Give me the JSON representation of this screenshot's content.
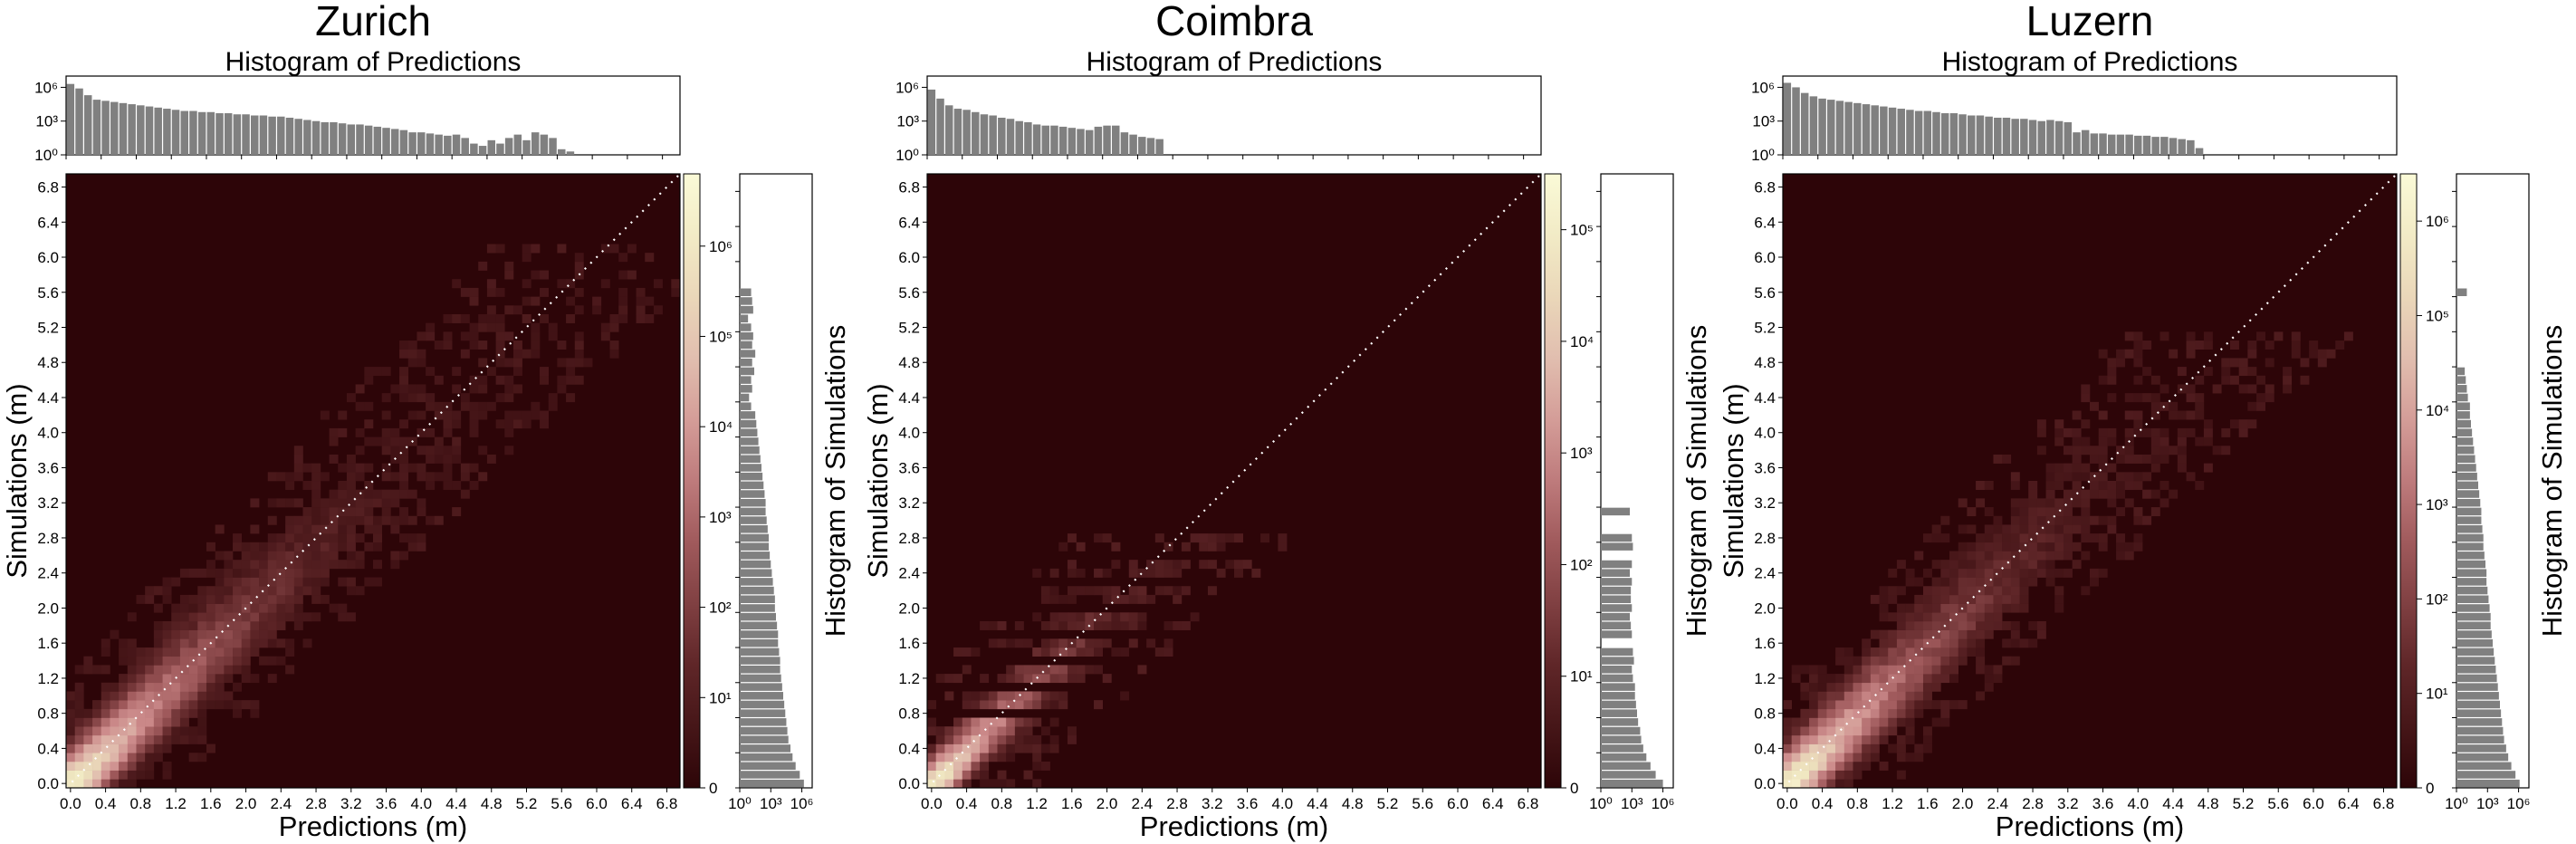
{
  "chart_data": [
    {
      "type": "heatmap",
      "title": "Zurich",
      "top_hist_title": "Histogram of Predictions",
      "side_hist_label": "Histogram of Simulations",
      "xlabel": "Predictions (m)",
      "ylabel": "Simulations (m)",
      "xlim": [
        0,
        7.0
      ],
      "ylim": [
        0,
        7.0
      ],
      "ticks": [
        "0.0",
        "0.4",
        "0.8",
        "1.2",
        "1.6",
        "2.0",
        "2.4",
        "2.8",
        "3.2",
        "3.6",
        "4.0",
        "4.4",
        "4.8",
        "5.2",
        "5.6",
        "6.0",
        "6.4",
        "6.8"
      ],
      "colorbar": {
        "scale": "log",
        "max_exp": 6.8,
        "tick_labels": [
          "0",
          "10¹",
          "10²",
          "10³",
          "10⁴",
          "10⁵",
          "10⁶"
        ],
        "tick_exps": [
          0,
          1,
          2,
          3,
          4,
          5,
          6
        ]
      },
      "top_hist": {
        "scale": "log",
        "tick_labels": [
          "10⁰",
          "10³",
          "10⁶"
        ],
        "max_exp": 7,
        "log10_counts": [
          6.3,
          5.9,
          5.3,
          4.9,
          4.8,
          4.7,
          4.6,
          4.5,
          4.4,
          4.3,
          4.2,
          4.1,
          4.0,
          3.9,
          3.9,
          3.8,
          3.8,
          3.7,
          3.7,
          3.6,
          3.6,
          3.5,
          3.5,
          3.4,
          3.4,
          3.3,
          3.2,
          3.1,
          3.0,
          2.9,
          2.9,
          2.8,
          2.7,
          2.7,
          2.6,
          2.5,
          2.4,
          2.3,
          2.2,
          2.0,
          2.0,
          1.9,
          1.8,
          1.7,
          1.8,
          1.5,
          1.0,
          0.8,
          1.3,
          1.0,
          1.5,
          1.8,
          1.3,
          2.0,
          1.8,
          1.5,
          0.5,
          0.3
        ]
      },
      "side_hist": {
        "scale": "log",
        "tick_labels": [
          "10⁰",
          "10³",
          "10⁶"
        ],
        "max_exp": 7,
        "log10_counts": [
          6.2,
          5.8,
          5.4,
          5.1,
          4.9,
          4.7,
          4.6,
          4.5,
          4.4,
          4.3,
          4.2,
          4.1,
          4.0,
          3.9,
          3.9,
          3.8,
          3.7,
          3.7,
          3.6,
          3.5,
          3.4,
          3.4,
          3.3,
          3.2,
          3.1,
          3.0,
          2.9,
          2.8,
          2.8,
          2.7,
          2.6,
          2.5,
          2.5,
          2.4,
          2.3,
          2.2,
          2.1,
          2.0,
          1.9,
          1.8,
          1.7,
          1.6,
          1.5,
          1.1,
          0.9,
          1.2,
          1.1,
          1.4,
          1.2,
          1.5,
          1.2,
          1.3,
          1.1,
          0.8,
          1.3,
          1.2,
          1.1
        ]
      },
      "bands": [
        {
          "y0": 0,
          "y1": 6.0,
          "peak_exp": 6.5
        }
      ]
    },
    {
      "type": "heatmap",
      "title": "Coimbra",
      "top_hist_title": "Histogram of Predictions",
      "side_hist_label": "Histogram of Simulations",
      "xlabel": "Predictions (m)",
      "ylabel": "Simulations (m)",
      "xlim": [
        0,
        7.0
      ],
      "ylim": [
        0,
        7.0
      ],
      "ticks": [
        "0.0",
        "0.4",
        "0.8",
        "1.2",
        "1.6",
        "2.0",
        "2.4",
        "2.8",
        "3.2",
        "3.6",
        "4.0",
        "4.4",
        "4.8",
        "5.2",
        "5.6",
        "6.0",
        "6.4",
        "6.8"
      ],
      "colorbar": {
        "scale": "log",
        "max_exp": 5.5,
        "tick_labels": [
          "0",
          "10¹",
          "10²",
          "10³",
          "10⁴",
          "10⁵"
        ],
        "tick_exps": [
          0,
          1,
          2,
          3,
          4,
          5
        ]
      },
      "top_hist": {
        "scale": "log",
        "tick_labels": [
          "10⁰",
          "10³",
          "10⁶"
        ],
        "max_exp": 7,
        "log10_counts": [
          5.8,
          5.0,
          4.4,
          4.1,
          4.0,
          3.8,
          3.6,
          3.5,
          3.3,
          3.2,
          3.0,
          2.9,
          2.7,
          2.6,
          2.6,
          2.5,
          2.4,
          2.3,
          2.2,
          2.5,
          2.6,
          2.6,
          2.0,
          1.8,
          1.6,
          1.5,
          1.4
        ]
      },
      "side_hist": {
        "scale": "log",
        "tick_labels": [
          "10⁰",
          "10³",
          "10⁶"
        ],
        "max_exp": 7,
        "log10_counts": [
          6.0,
          5.3,
          4.8,
          4.4,
          4.1,
          3.9,
          3.8,
          3.6,
          3.5,
          3.4,
          3.3,
          3.3,
          3.1,
          3.0,
          3.2,
          3.1,
          0,
          3.0,
          2.9,
          2.8,
          3.0,
          2.9,
          2.9,
          3.0,
          2.8,
          3.0,
          0,
          3.1,
          3.0,
          0,
          0,
          2.8
        ]
      },
      "bands": [
        {
          "y0": 0,
          "y1": 2.8,
          "peak_exp": 5.3,
          "fragmented": true
        }
      ]
    },
    {
      "type": "heatmap",
      "title": "Luzern",
      "top_hist_title": "Histogram of Predictions",
      "side_hist_label": "Histogram of Simulations",
      "xlabel": "Predictions (m)",
      "ylabel": "Simulations (m)",
      "xlim": [
        0,
        7.0
      ],
      "ylim": [
        0,
        7.0
      ],
      "ticks": [
        "0.0",
        "0.4",
        "0.8",
        "1.2",
        "1.6",
        "2.0",
        "2.4",
        "2.8",
        "3.2",
        "3.6",
        "4.0",
        "4.4",
        "4.8",
        "5.2",
        "5.6",
        "6.0",
        "6.4",
        "6.8"
      ],
      "colorbar": {
        "scale": "log",
        "max_exp": 6.5,
        "tick_labels": [
          "0",
          "10¹",
          "10²",
          "10³",
          "10⁴",
          "10⁵",
          "10⁶"
        ],
        "tick_exps": [
          0,
          1,
          2,
          3,
          4,
          5,
          6
        ]
      },
      "top_hist": {
        "scale": "log",
        "tick_labels": [
          "10⁰",
          "10³",
          "10⁶"
        ],
        "max_exp": 7,
        "log10_counts": [
          6.4,
          6.0,
          5.5,
          5.2,
          5.0,
          4.9,
          4.8,
          4.7,
          4.6,
          4.5,
          4.4,
          4.3,
          4.2,
          4.1,
          4.0,
          3.9,
          3.9,
          3.8,
          3.7,
          3.7,
          3.6,
          3.5,
          3.5,
          3.4,
          3.3,
          3.3,
          3.2,
          3.2,
          3.1,
          3.0,
          3.1,
          3.0,
          2.9,
          2.0,
          2.2,
          1.9,
          1.9,
          1.8,
          1.8,
          1.8,
          1.7,
          1.7,
          1.6,
          1.6,
          1.5,
          1.4,
          1.3,
          0.6
        ]
      },
      "side_hist": {
        "scale": "log",
        "tick_labels": [
          "10⁰",
          "10³",
          "10⁶"
        ],
        "max_exp": 7,
        "log10_counts": [
          6.1,
          5.7,
          5.3,
          5.0,
          4.8,
          4.6,
          4.5,
          4.4,
          4.3,
          4.2,
          4.1,
          4.0,
          3.9,
          3.8,
          3.7,
          3.6,
          3.5,
          3.4,
          3.3,
          3.3,
          3.2,
          3.1,
          3.0,
          2.9,
          2.9,
          2.8,
          2.7,
          2.6,
          2.6,
          2.5,
          2.4,
          2.4,
          2.3,
          2.2,
          2.1,
          2.0,
          1.9,
          1.8,
          1.7,
          1.6,
          1.5,
          1.4,
          1.3,
          1.3,
          1.1,
          1.0,
          0.9,
          0.8,
          0,
          0,
          0,
          0,
          0,
          0,
          0,
          0,
          1.0
        ]
      },
      "bands": [
        {
          "y0": 0,
          "y1": 5.0,
          "peak_exp": 6.3
        }
      ]
    }
  ]
}
